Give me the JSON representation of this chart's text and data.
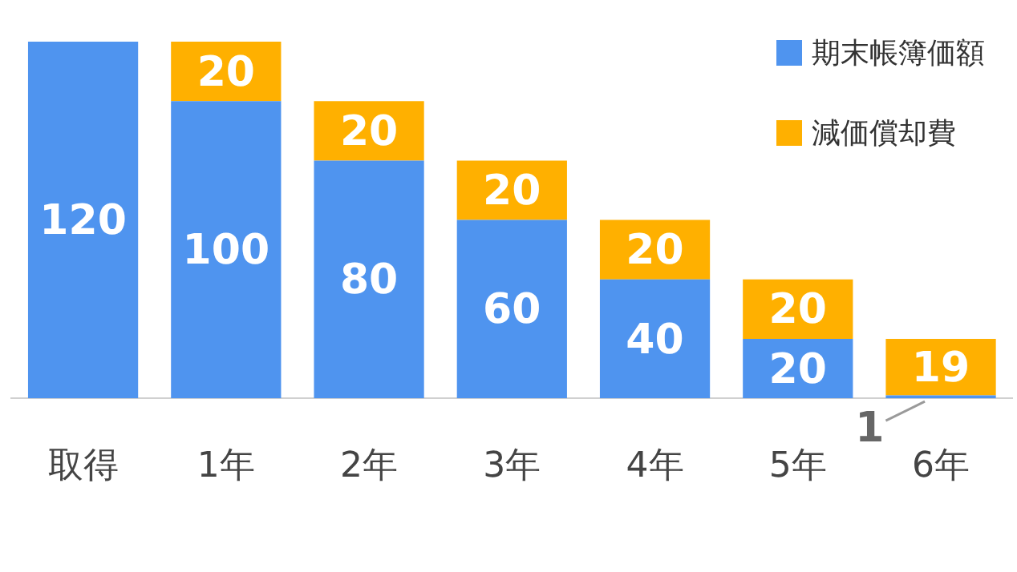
{
  "chart_data": {
    "type": "bar",
    "stacked": true,
    "categories": [
      "取得",
      "1年",
      "2年",
      "3年",
      "4年",
      "5年",
      "6年"
    ],
    "series": [
      {
        "name": "期末帳簿価額",
        "color": "#4f94ef",
        "values": [
          120,
          100,
          80,
          60,
          40,
          20,
          1
        ]
      },
      {
        "name": "減価償却費",
        "color": "#ffb000",
        "values": [
          null,
          20,
          20,
          20,
          20,
          20,
          19
        ]
      }
    ],
    "ylim": [
      0,
      120
    ],
    "data_labels": true,
    "legend": "top right",
    "grid": false,
    "tick_labels": "x"
  }
}
